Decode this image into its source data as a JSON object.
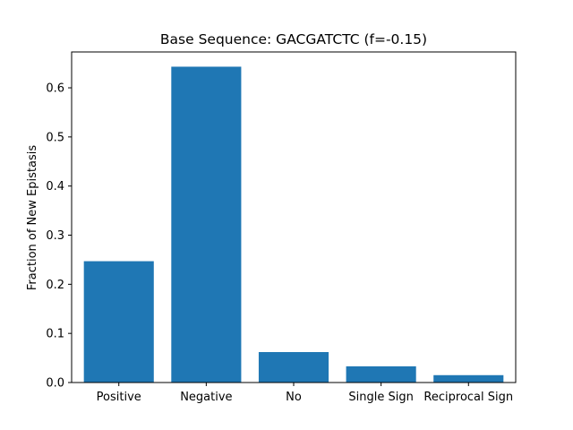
{
  "chart_data": {
    "type": "bar",
    "title": "Base Sequence: GACGATCTC (f=-0.15)",
    "xlabel": "",
    "ylabel": "Fraction of New Epistasis",
    "categories": [
      "Positive",
      "Negative",
      "No",
      "Single Sign",
      "Reciprocal Sign"
    ],
    "values": [
      0.247,
      0.643,
      0.062,
      0.033,
      0.015
    ],
    "ylim": [
      0,
      0.673
    ],
    "yticks": [
      0.0,
      0.1,
      0.2,
      0.3,
      0.4,
      0.5,
      0.6
    ],
    "ytick_labels": [
      "0.0",
      "0.1",
      "0.2",
      "0.3",
      "0.4",
      "0.5",
      "0.6"
    ],
    "bar_color": "#1f77b4",
    "grid": false,
    "legend": "none"
  }
}
